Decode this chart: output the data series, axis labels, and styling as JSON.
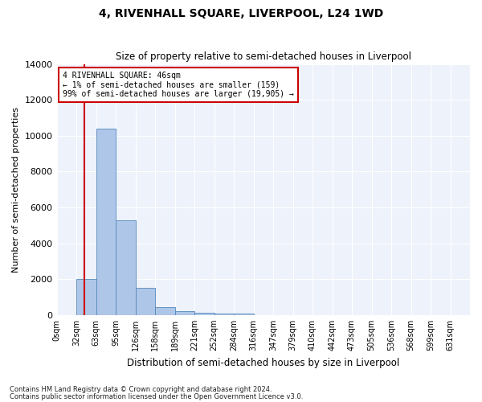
{
  "title": "4, RIVENHALL SQUARE, LIVERPOOL, L24 1WD",
  "subtitle": "Size of property relative to semi-detached houses in Liverpool",
  "xlabel": "Distribution of semi-detached houses by size in Liverpool",
  "ylabel": "Number of semi-detached properties",
  "footnote1": "Contains HM Land Registry data © Crown copyright and database right 2024.",
  "footnote2": "Contains public sector information licensed under the Open Government Licence v3.0.",
  "annotation_line1": "4 RIVENHALL SQUARE: 46sqm",
  "annotation_line2": "← 1% of semi-detached houses are smaller (159)",
  "annotation_line3": "99% of semi-detached houses are larger (19,905) →",
  "property_size": 1.4,
  "bar_color": "#aec6e8",
  "bar_edge_color": "#5588bb",
  "vline_color": "#cc0000",
  "annotation_box_color": "#cc0000",
  "background_color": "#eef2fb",
  "categories": [
    "0sqm",
    "32sqm",
    "63sqm",
    "95sqm",
    "126sqm",
    "158sqm",
    "189sqm",
    "221sqm",
    "252sqm",
    "284sqm",
    "316sqm",
    "347sqm",
    "379sqm",
    "410sqm",
    "442sqm",
    "473sqm",
    "505sqm",
    "536sqm",
    "568sqm",
    "599sqm",
    "631sqm"
  ],
  "values": [
    0,
    2000,
    10400,
    5300,
    1500,
    450,
    200,
    130,
    75,
    75,
    10,
    0,
    0,
    0,
    0,
    0,
    0,
    0,
    0,
    0,
    0
  ],
  "ylim": [
    0,
    14000
  ],
  "yticks": [
    0,
    2000,
    4000,
    6000,
    8000,
    10000,
    12000,
    14000
  ]
}
